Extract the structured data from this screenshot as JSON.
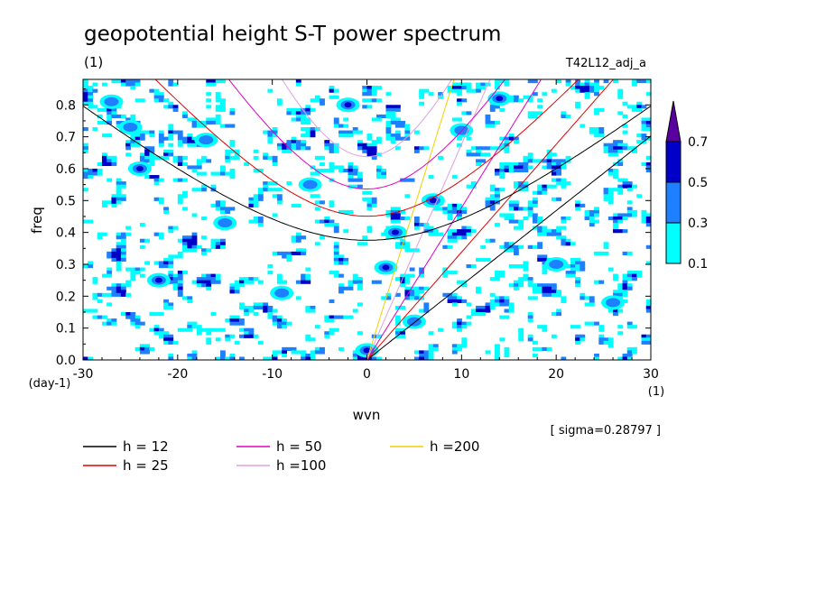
{
  "chart_data": {
    "type": "contour",
    "title": "geopotential height S-T power spectrum",
    "subtitle_left": "(1)",
    "subtitle_right": "T42L12_adj_a",
    "xlabel": "wvn",
    "ylabel": "freq",
    "xunit": "(1)",
    "yunit": "(day-1)",
    "xlim": [
      -30,
      30
    ],
    "ylim": [
      0,
      0.88
    ],
    "xticks": [
      -30,
      -20,
      -10,
      0,
      10,
      20,
      30
    ],
    "xtick_labels": [
      "-30",
      "-20",
      "-10",
      "0",
      "10",
      "20",
      "30"
    ],
    "yticks": [
      0,
      0.1,
      0.2,
      0.3,
      0.4,
      0.5,
      0.6,
      0.7,
      0.8
    ],
    "ytick_labels": [
      "0.0",
      "0.1",
      "0.2",
      "0.3",
      "0.4",
      "0.5",
      "0.6",
      "0.7",
      "0.8"
    ],
    "sigma_text": "[ sigma=0.28797 ]",
    "colorbar": {
      "levels": [
        0.1,
        0.3,
        0.5,
        0.7
      ],
      "labels": [
        "0.1",
        "0.3",
        "0.5",
        "0.7"
      ],
      "colors": [
        "#00ffff",
        "#1e7fff",
        "#0000c8",
        "#5a00a0"
      ]
    },
    "dispersion_curves": [
      {
        "name": "h = 12",
        "h": 12,
        "color": "#000000",
        "kind": "Kelvin"
      },
      {
        "name": "h = 25",
        "h": 25,
        "color": "#e00000",
        "kind": "Kelvin"
      },
      {
        "name": "h = 50",
        "h": 50,
        "color": "#e000c0",
        "kind": "Kelvin"
      },
      {
        "name": "h =100",
        "h": 100,
        "color": "#e0a0e0",
        "kind": "Kelvin"
      },
      {
        "name": "h =200",
        "h": 200,
        "color": "#f0d000",
        "kind": "Kelvin"
      },
      {
        "name": "h = 12",
        "h": 12,
        "color": "#000000",
        "kind": "inertia-gravity"
      },
      {
        "name": "h = 25",
        "h": 25,
        "color": "#e00000",
        "kind": "inertia-gravity"
      },
      {
        "name": "h = 50",
        "h": 50,
        "color": "#e000c0",
        "kind": "inertia-gravity"
      },
      {
        "name": "h =100",
        "h": 100,
        "color": "#e0a0e0",
        "kind": "inertia-gravity"
      }
    ],
    "legend": [
      {
        "label": "h = 12",
        "color": "#000000"
      },
      {
        "label": "h = 25",
        "color": "#e00000"
      },
      {
        "label": "h = 50",
        "color": "#e000c0"
      },
      {
        "label": "h =100",
        "color": "#e0a0e0"
      },
      {
        "label": "h =200",
        "color": "#f0d000"
      }
    ],
    "spectral_peaks": [
      {
        "x": 0,
        "y": 0.03,
        "level": 0.5
      },
      {
        "x": -22,
        "y": 0.25,
        "level": 0.5
      },
      {
        "x": -24,
        "y": 0.6,
        "level": 0.5
      },
      {
        "x": -2,
        "y": 0.8,
        "level": 0.5
      },
      {
        "x": 3,
        "y": 0.4,
        "level": 0.5
      },
      {
        "x": 7,
        "y": 0.5,
        "level": 0.5
      },
      {
        "x": 2,
        "y": 0.29,
        "level": 0.5
      },
      {
        "x": 14,
        "y": 0.82,
        "level": 0.5
      },
      {
        "x": -27,
        "y": 0.81,
        "level": 0.3
      },
      {
        "x": -25,
        "y": 0.73,
        "level": 0.3
      },
      {
        "x": -17,
        "y": 0.69,
        "level": 0.3
      },
      {
        "x": -6,
        "y": 0.55,
        "level": 0.3
      },
      {
        "x": 5,
        "y": 0.12,
        "level": 0.3
      },
      {
        "x": -15,
        "y": 0.43,
        "level": 0.3
      },
      {
        "x": 10,
        "y": 0.72,
        "level": 0.3
      },
      {
        "x": 20,
        "y": 0.3,
        "level": 0.3
      },
      {
        "x": 26,
        "y": 0.18,
        "level": 0.3
      },
      {
        "x": -9,
        "y": 0.21,
        "level": 0.3
      }
    ]
  }
}
